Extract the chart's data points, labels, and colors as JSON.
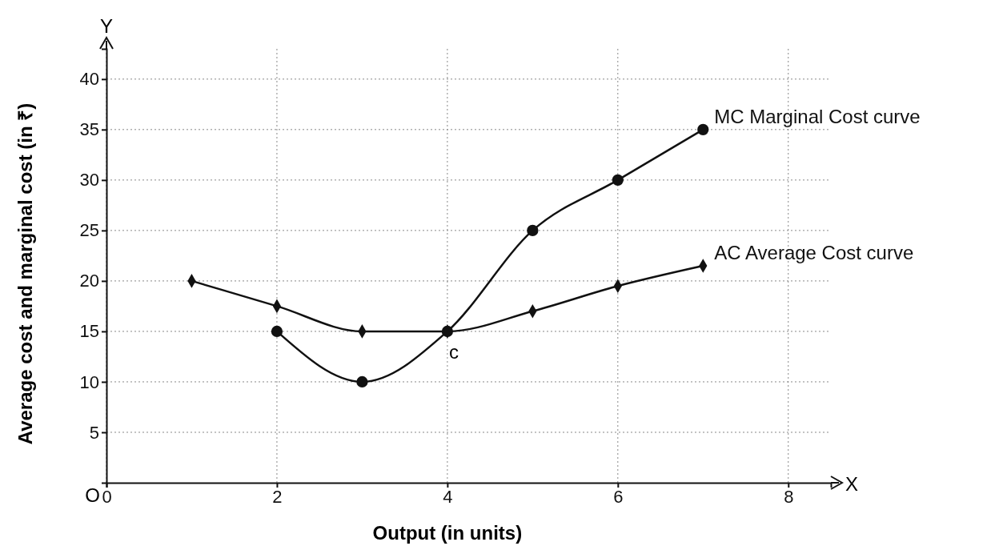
{
  "chart_data": {
    "type": "line",
    "xlabel": "Output (in units)",
    "ylabel": "Average cost and marginal cost (in ₹)",
    "xlim": [
      0,
      8.5
    ],
    "ylim": [
      0,
      43
    ],
    "xticks": [
      0,
      2,
      4,
      6,
      8
    ],
    "yticks": [
      5,
      10,
      15,
      20,
      25,
      30,
      35,
      40
    ],
    "grid": true,
    "line_style": "solid",
    "series": [
      {
        "name": "MC Marginal Cost curve",
        "color": "#111111",
        "marker": "circle",
        "x": [
          2,
          3,
          4,
          5,
          6,
          7
        ],
        "values": [
          15,
          10,
          15,
          25,
          30,
          35
        ]
      },
      {
        "name": "AC Average Cost curve",
        "color": "#111111",
        "marker": "diamond",
        "x": [
          1,
          2,
          3,
          4,
          5,
          6,
          7
        ],
        "values": [
          20,
          17.5,
          15,
          15,
          17,
          19.5,
          21.5
        ]
      }
    ],
    "annotations": [
      {
        "text": "c",
        "x": 4,
        "y": 15
      },
      "O",
      "X",
      "Y"
    ]
  }
}
